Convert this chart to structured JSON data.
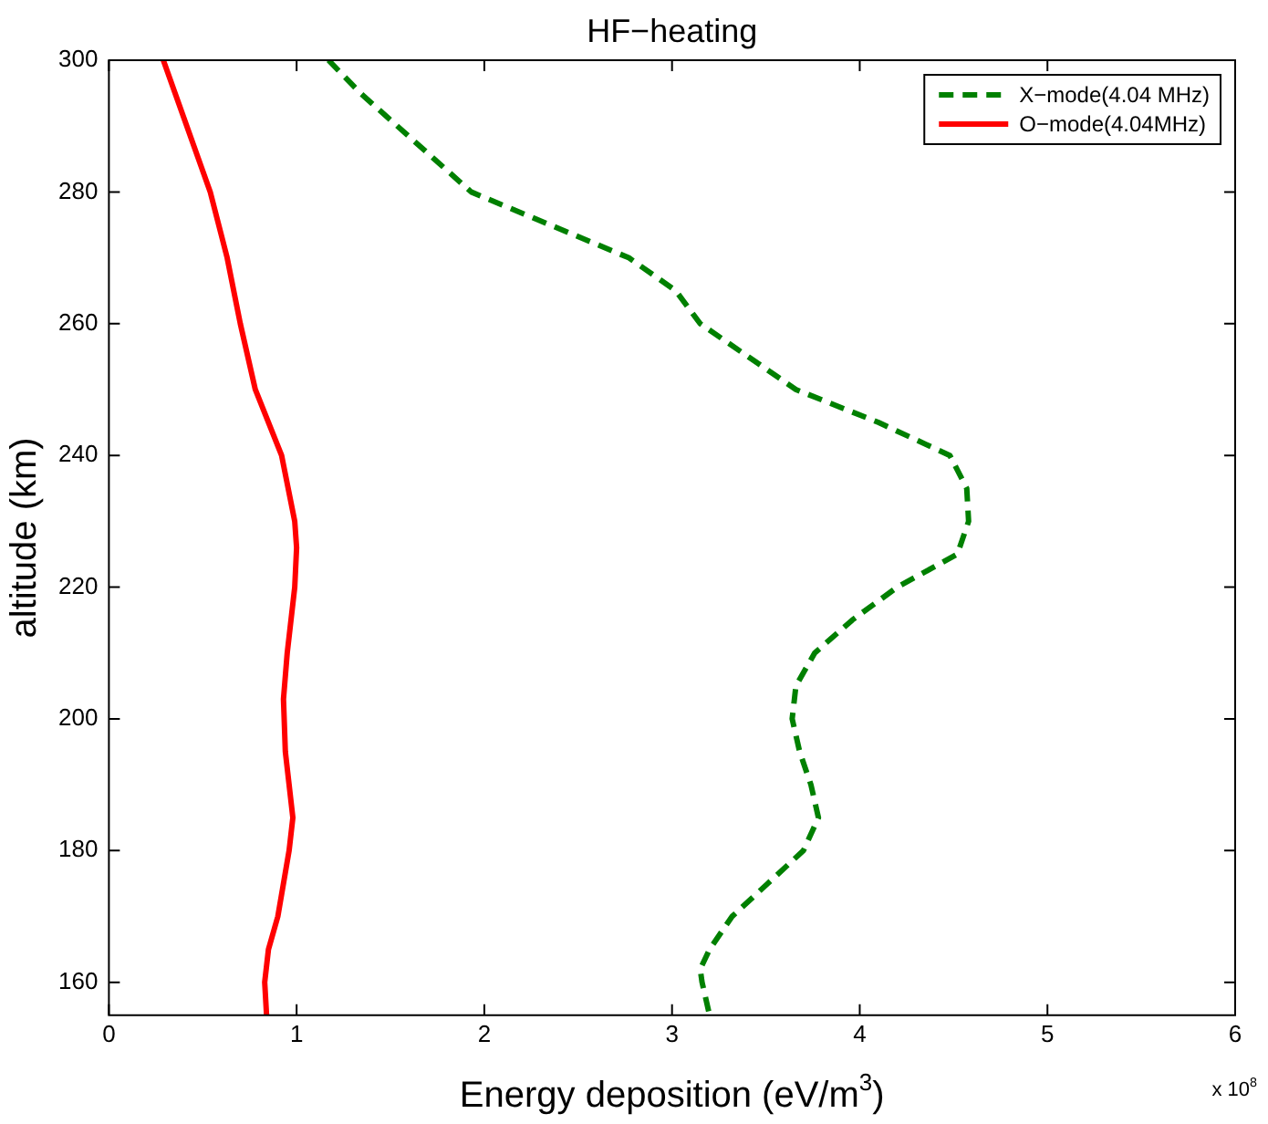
{
  "chart_data": {
    "type": "line",
    "title": "HF−heating",
    "xlabel": "Energy deposition (eV/m$^{3}$)",
    "ylabel": "altitude (km)",
    "xlim": [
      0,
      6
    ],
    "xticks": [
      0,
      1,
      2,
      3,
      4,
      5,
      6
    ],
    "ylim": [
      155,
      300
    ],
    "yticks": [
      160,
      180,
      200,
      220,
      240,
      260,
      280,
      300
    ],
    "grid": false,
    "legend": "top right",
    "marker": "none",
    "annotations": [
      "x 10$^{8}$"
    ],
    "series": [
      {
        "name": "X−mode(4.04 MHz)",
        "color": "#008000",
        "line_style": "dashed",
        "x": [
          1.17,
          1.34,
          1.93,
          2.77,
          3.02,
          3.15,
          3.66,
          4.1,
          4.48,
          4.57,
          4.58,
          4.52,
          4.2,
          3.96,
          3.76,
          3.66,
          3.64,
          3.68,
          3.74,
          3.78,
          3.7,
          3.51,
          3.32,
          3.2,
          3.15,
          3.16,
          3.2
        ],
        "values": [
          300,
          295,
          280,
          270,
          265,
          260,
          250,
          245,
          240,
          235,
          230,
          225,
          220,
          215,
          210,
          205,
          200,
          195,
          190,
          185,
          180,
          175,
          170,
          165,
          162,
          160,
          155
        ]
      },
      {
        "name": "O−mode(4.04MHz)",
        "color": "#ff0000",
        "line_style": "solid",
        "x": [
          0.29,
          0.54,
          0.63,
          0.7,
          0.78,
          0.92,
          0.99,
          1.0,
          0.99,
          0.95,
          0.93,
          0.94,
          0.98,
          0.96,
          0.9,
          0.85,
          0.83,
          0.84
        ],
        "values": [
          300,
          280,
          270,
          260,
          250,
          240,
          230,
          226,
          220,
          210,
          203,
          195,
          185,
          180,
          170,
          165,
          160,
          155
        ]
      }
    ]
  }
}
